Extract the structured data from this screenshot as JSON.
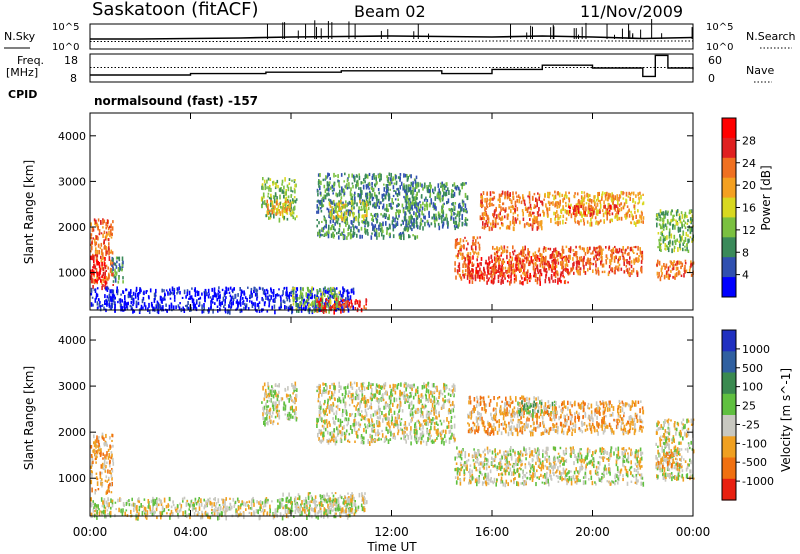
{
  "header": {
    "station": "Saskatoon (fitACF)",
    "beam": "Beam 02",
    "date": "11/Nov/2009"
  },
  "left_labels": {
    "nsky": "N.Sky",
    "freq_line1": "Freq.",
    "freq_line2": "[MHz]",
    "cpid": "CPID"
  },
  "right_labels": {
    "nsearch": "N.Search",
    "nave": "Nave"
  },
  "cpid_text": "normalsound (fast) -157",
  "colors": {
    "power": [
      "#0000ff",
      "#3050b0",
      "#3a8a5a",
      "#7ac040",
      "#d8d820",
      "#f4a020",
      "#f07020",
      "#e02020",
      "#ff0000"
    ],
    "velocity": [
      "#2030c0",
      "#3060a0",
      "#3a8a50",
      "#60c040",
      "#c8c8c0",
      "#f0a020",
      "#f07010",
      "#e82010"
    ]
  },
  "chart_data": [
    {
      "type": "line",
      "name": "noise-panel",
      "x": [
        0,
        2,
        4,
        6,
        8,
        10,
        12,
        14,
        16,
        18,
        20,
        22,
        24
      ],
      "series": [
        {
          "name": "N.Sky",
          "values": [
            2.0,
            2.0,
            2.1,
            2.2,
            2.4,
            2.5,
            2.6,
            2.5,
            2.4,
            2.6,
            2.4,
            2.1,
            2.3
          ]
        },
        {
          "name": "N.Search",
          "values": [
            1.5,
            1.5,
            1.5,
            1.5,
            1.5,
            1.5,
            1.5,
            1.5,
            1.6,
            1.6,
            1.6,
            1.6,
            1.6
          ]
        }
      ],
      "left_ticks": [
        "10^5",
        "10^0"
      ],
      "right_ticks": [
        "10^5",
        "10^0"
      ]
    },
    {
      "type": "line",
      "name": "freq-panel",
      "x": [
        0,
        1,
        2,
        3,
        4,
        5,
        6,
        7,
        8,
        9,
        10,
        11,
        12,
        13,
        14,
        15,
        16,
        17,
        18,
        19,
        20,
        21,
        22,
        22.5,
        23,
        24
      ],
      "series": [
        {
          "name": "Freq",
          "axis": "left",
          "values": [
            10.5,
            10.5,
            10.5,
            10.5,
            11,
            11,
            11,
            11.5,
            11.5,
            11.5,
            12,
            12,
            12,
            12,
            11,
            11,
            12.5,
            12.5,
            14,
            14,
            13,
            13,
            10,
            17.5,
            13,
            12.5
          ]
        },
        {
          "name": "Nave",
          "axis": "right",
          "values": [
            31,
            31,
            31,
            31,
            31,
            31,
            31,
            31,
            31,
            31,
            31,
            31,
            31,
            31,
            31,
            31,
            31,
            31,
            31,
            31,
            31,
            31,
            31,
            31,
            31,
            31
          ]
        }
      ],
      "left_ticks": [
        "18",
        "8"
      ],
      "right_ticks": [
        "60",
        "0"
      ]
    },
    {
      "type": "heatmap",
      "name": "power-panel",
      "ylabel": "Slant Range [km]",
      "yticks": [
        "4000",
        "3000",
        "2000",
        "1000"
      ],
      "colorbar_label": "Power [dB]",
      "colorbar_ticks": [
        "28",
        "24",
        "20",
        "16",
        "12",
        "8",
        "4"
      ],
      "xlim": [
        0,
        24
      ],
      "ylim": [
        180,
        4500
      ],
      "blobs": [
        {
          "t0": 0.0,
          "t1": 0.9,
          "r0": 700,
          "r1": 2200,
          "level": 6
        },
        {
          "t0": 0.0,
          "t1": 0.6,
          "r0": 800,
          "r1": 1400,
          "level": 8
        },
        {
          "t0": 0.8,
          "t1": 1.3,
          "r0": 800,
          "r1": 1400,
          "level": 2
        },
        {
          "t0": 0.0,
          "t1": 10.5,
          "r0": 180,
          "r1": 700,
          "level": 0
        },
        {
          "t0": 6.8,
          "t1": 8.2,
          "r0": 2200,
          "r1": 3100,
          "level": 3
        },
        {
          "t0": 7.0,
          "t1": 8.0,
          "r0": 2300,
          "r1": 2600,
          "level": 5
        },
        {
          "t0": 8.0,
          "t1": 10.0,
          "r0": 180,
          "r1": 700,
          "level": 3
        },
        {
          "t0": 9.0,
          "t1": 11.0,
          "r0": 180,
          "r1": 450,
          "level": 7
        },
        {
          "t0": 9.0,
          "t1": 13.0,
          "r0": 1800,
          "r1": 3200,
          "level": 2
        },
        {
          "t0": 9.5,
          "t1": 11.0,
          "r0": 2200,
          "r1": 2600,
          "level": 4
        },
        {
          "t0": 12.5,
          "t1": 15.0,
          "r0": 2000,
          "r1": 3000,
          "level": 2
        },
        {
          "t0": 14.5,
          "t1": 15.5,
          "r0": 900,
          "r1": 1800,
          "level": 6
        },
        {
          "t0": 15.0,
          "t1": 19.0,
          "r0": 800,
          "r1": 1400,
          "level": 7
        },
        {
          "t0": 16.0,
          "t1": 22.0,
          "r0": 1000,
          "r1": 1600,
          "level": 6
        },
        {
          "t0": 15.5,
          "t1": 18.0,
          "r0": 2000,
          "r1": 2800,
          "level": 6
        },
        {
          "t0": 18.0,
          "t1": 22.0,
          "r0": 2100,
          "r1": 2800,
          "level": 5
        },
        {
          "t0": 19.0,
          "t1": 21.0,
          "r0": 2300,
          "r1": 2500,
          "level": 7
        },
        {
          "t0": 22.5,
          "t1": 24.0,
          "r0": 900,
          "r1": 1300,
          "level": 6
        },
        {
          "t0": 22.5,
          "t1": 24.0,
          "r0": 1500,
          "r1": 2400,
          "level": 3
        }
      ]
    },
    {
      "type": "heatmap",
      "name": "velocity-panel",
      "ylabel": "Slant Range [km]",
      "yticks": [
        "4000",
        "3000",
        "2000",
        "1000"
      ],
      "colorbar_label": "Velocity [m s^-1]",
      "colorbar_ticks": [
        "1000",
        "500",
        "100",
        "25",
        "-25",
        "-100",
        "-500",
        "-1000"
      ],
      "xlim": [
        0,
        24
      ],
      "ylim": [
        180,
        4500
      ],
      "xticks": [
        "00:00",
        "04:00",
        "08:00",
        "12:00",
        "16:00",
        "20:00",
        "00:00"
      ],
      "xlabel": "Time UT",
      "blobs": [
        {
          "t0": 0.0,
          "t1": 0.9,
          "r0": 700,
          "r1": 2000,
          "level": 5
        },
        {
          "t0": 0.0,
          "t1": 10.5,
          "r0": 180,
          "r1": 600,
          "level": 4
        },
        {
          "t0": 6.8,
          "t1": 8.2,
          "r0": 2200,
          "r1": 3100,
          "level": 4
        },
        {
          "t0": 7.5,
          "t1": 11.0,
          "r0": 300,
          "r1": 700,
          "level": 4
        },
        {
          "t0": 9.0,
          "t1": 14.5,
          "r0": 1800,
          "r1": 3100,
          "level": 4
        },
        {
          "t0": 14.5,
          "t1": 22.0,
          "r0": 900,
          "r1": 1700,
          "level": 4
        },
        {
          "t0": 15.0,
          "t1": 18.0,
          "r0": 2000,
          "r1": 2800,
          "level": 5
        },
        {
          "t0": 17.0,
          "t1": 18.5,
          "r0": 2400,
          "r1": 2700,
          "level": 3
        },
        {
          "t0": 18.0,
          "t1": 22.0,
          "r0": 2000,
          "r1": 2700,
          "level": 5
        },
        {
          "t0": 22.5,
          "t1": 24.0,
          "r0": 1000,
          "r1": 2300,
          "level": 4
        },
        {
          "t0": 22.5,
          "t1": 23.5,
          "r0": 1200,
          "r1": 1600,
          "level": 5
        }
      ]
    }
  ]
}
